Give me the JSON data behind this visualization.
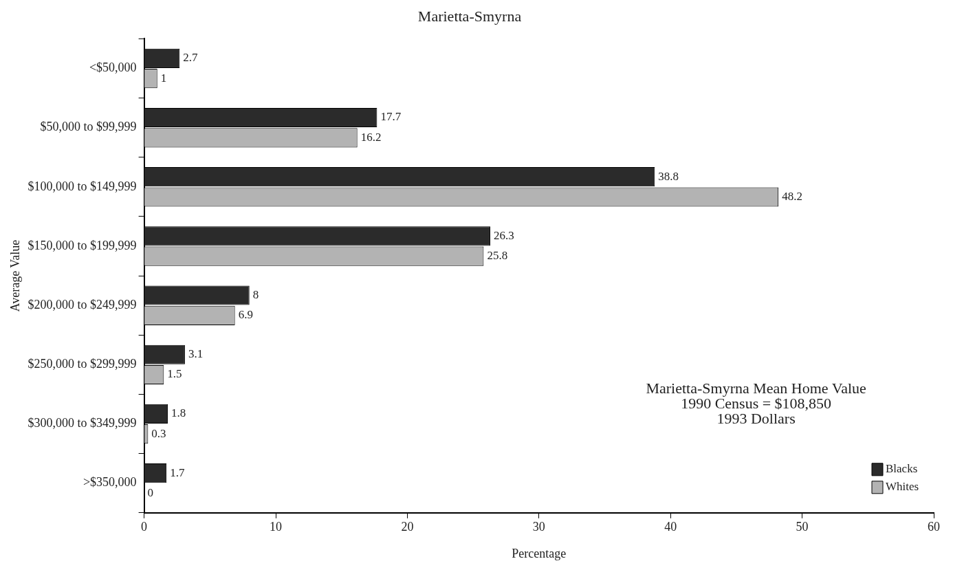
{
  "chart_data": {
    "type": "bar",
    "orientation": "horizontal",
    "title": "Marietta-Smyrna",
    "xlabel": "Percentage",
    "ylabel": "Average Value",
    "categories": [
      "<$50,000",
      "$50,000 to $99,999",
      "$100,000 to $149,999",
      "$150,000 to $199,999",
      "$200,000 to $249,999",
      "$250,000 to $299,999",
      "$300,000 to $349,999",
      ">$350,000"
    ],
    "series": [
      {
        "name": "Blacks",
        "color": "#2b2b2b",
        "values": [
          2.7,
          17.7,
          38.8,
          26.3,
          8,
          3.1,
          1.8,
          1.7
        ]
      },
      {
        "name": "Whites",
        "color": "#b3b3b3",
        "values": [
          1,
          16.2,
          48.2,
          25.8,
          6.9,
          1.5,
          0.3,
          0
        ]
      }
    ],
    "xlim": [
      0,
      60
    ],
    "xticks": [
      0,
      10,
      20,
      30,
      40,
      50,
      60
    ],
    "data_labels": true,
    "grid": false,
    "legend": "bottom right",
    "annotations": [
      "Marietta-Smyrna Mean Home Value",
      "1990 Census = $108,850",
      "1993 Dollars"
    ]
  }
}
